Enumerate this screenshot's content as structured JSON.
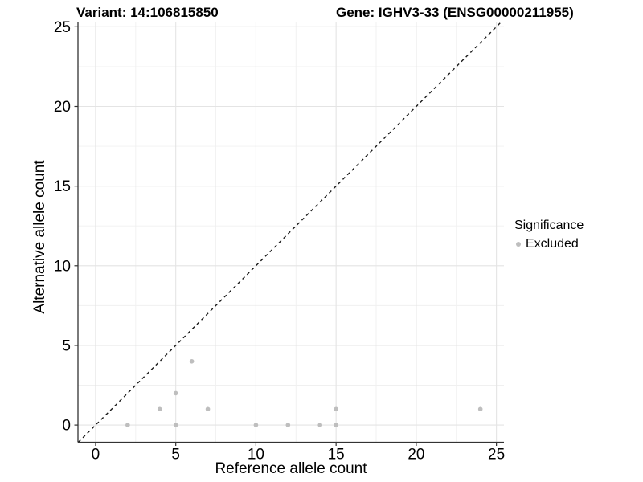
{
  "figure": {
    "variant_title": "Variant: 14:106815850",
    "gene_title": "Gene: IGHV3-33 (ENSG00000211955)"
  },
  "chart_data": {
    "type": "scatter",
    "title_left": "Variant: 14:106815850",
    "title_right": "Gene: IGHV3-33 (ENSG00000211955)",
    "xlabel": "Reference allele count",
    "ylabel": "Alternative allele count",
    "xlim": [
      -1.1,
      25.47
    ],
    "ylim": [
      -1.08,
      25.27
    ],
    "x_ticks": [
      0,
      5,
      10,
      15,
      20,
      25
    ],
    "y_ticks": [
      0,
      5,
      10,
      15,
      20,
      25
    ],
    "x_minor": [
      2.5,
      7.5,
      12.5,
      17.5,
      22.5
    ],
    "y_minor": [
      2.5,
      7.5,
      12.5,
      17.5,
      22.5
    ],
    "grid": true,
    "legend_position": "right",
    "reference_line": {
      "equation": "y = x",
      "style": "dashed",
      "color": "#1a1a1a"
    },
    "series": [
      {
        "name": "Excluded",
        "color": "#bebebe",
        "points": [
          [
            2,
            0
          ],
          [
            4,
            1
          ],
          [
            5,
            0
          ],
          [
            5,
            2
          ],
          [
            6,
            4
          ],
          [
            7,
            1
          ],
          [
            10,
            0
          ],
          [
            12,
            0
          ],
          [
            14,
            0
          ],
          [
            15,
            0
          ],
          [
            15,
            1
          ],
          [
            24,
            1
          ]
        ]
      }
    ]
  },
  "legend": {
    "title": "Significance",
    "items": [
      {
        "label": "Excluded",
        "color": "#bebebe"
      }
    ]
  },
  "colors": {
    "point": "#bebebe",
    "grid_major": "#e4e4e4",
    "grid_minor": "#f0f0f0",
    "axis_line": "#333333",
    "reference_line": "#1a1a1a",
    "background": "#ffffff"
  }
}
